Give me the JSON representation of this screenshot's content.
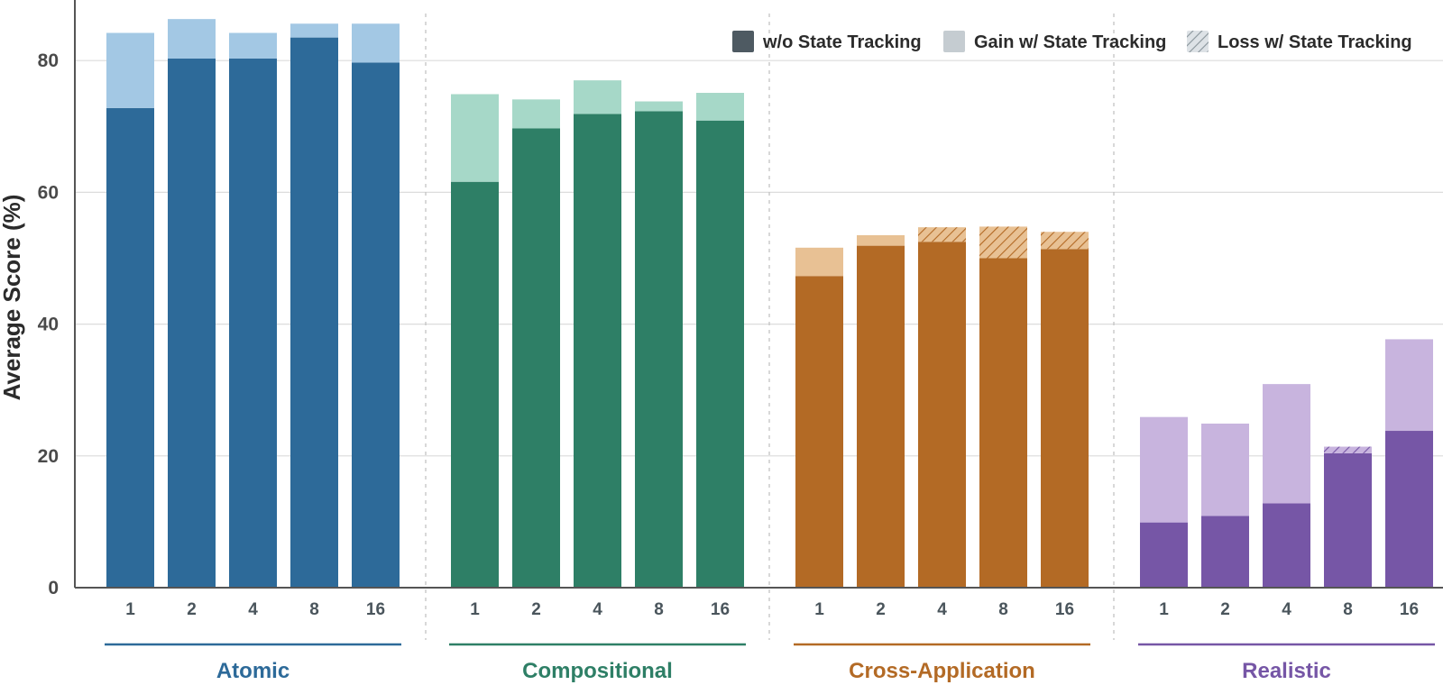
{
  "chart_data": {
    "type": "bar",
    "stacked": true,
    "ylabel": "Average Score (%)",
    "ylim": [
      0,
      90
    ],
    "yticks": [
      0,
      20,
      40,
      60,
      80
    ],
    "grid": true,
    "legend_placement": "top-right",
    "legend": [
      {
        "label": "w/o State Tracking",
        "swatch": "solid",
        "color": "#4e5a62"
      },
      {
        "label": "Gain w/ State Tracking",
        "swatch": "light",
        "color": "#c5ccd1"
      },
      {
        "label": "Loss w/ State Tracking",
        "swatch": "hatched",
        "color": "#c5ccd1"
      }
    ],
    "groups": [
      {
        "name": "Atomic",
        "color": "#2d6a99",
        "light_color": "#a3c8e4",
        "categories": [
          "1",
          "2",
          "4",
          "8",
          "16"
        ],
        "without_state_tracking": [
          72.8,
          80.3,
          80.3,
          83.5,
          79.7
        ],
        "with_state_tracking": [
          84.2,
          86.3,
          84.2,
          85.6,
          85.6
        ]
      },
      {
        "name": "Compositional",
        "color": "#2e7f66",
        "light_color": "#a6d8c8",
        "categories": [
          "1",
          "2",
          "4",
          "8",
          "16"
        ],
        "without_state_tracking": [
          61.6,
          69.7,
          71.9,
          72.3,
          70.9
        ],
        "with_state_tracking": [
          74.9,
          74.1,
          77.0,
          73.8,
          75.1
        ]
      },
      {
        "name": "Cross-Application",
        "color": "#b36a25",
        "light_color": "#e8c194",
        "categories": [
          "1",
          "2",
          "4",
          "8",
          "16"
        ],
        "without_state_tracking": [
          47.3,
          51.9,
          54.7,
          54.8,
          54.0
        ],
        "with_state_tracking": [
          51.6,
          53.5,
          52.5,
          50.0,
          51.4
        ]
      },
      {
        "name": "Realistic",
        "color": "#7656a6",
        "light_color": "#c8b4de",
        "categories": [
          "1",
          "2",
          "4",
          "8",
          "16"
        ],
        "without_state_tracking": [
          9.9,
          10.9,
          12.8,
          21.4,
          23.8
        ],
        "with_state_tracking": [
          25.9,
          24.9,
          30.9,
          20.4,
          37.7
        ]
      }
    ]
  }
}
